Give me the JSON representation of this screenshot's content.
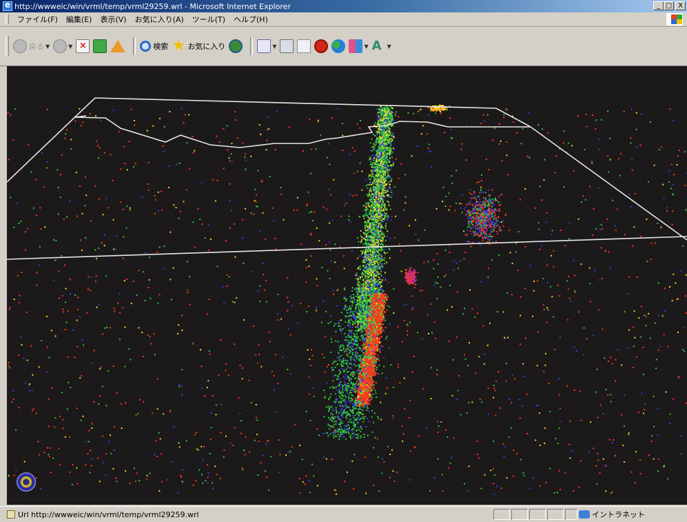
{
  "window": {
    "title": "http://wwweic/win/vrml/temp/vrml29259.wrl - Microsoft Internet Explorer",
    "minimize": "_",
    "maximize": "□",
    "close": "X"
  },
  "menu": {
    "items": [
      "ファイル(F)",
      "編集(E)",
      "表示(V)",
      "お気に入り(A)",
      "ツール(T)",
      "ヘルプ(H)"
    ]
  },
  "toolbar": {
    "back_label": "戻る",
    "search_label": "検索",
    "favorites_label": "お気に入り",
    "icons": [
      "back-icon",
      "forward-icon",
      "stop-icon",
      "refresh-icon",
      "home-icon",
      "search-icon",
      "favorites-icon",
      "history-icon",
      "mail-icon",
      "print-icon",
      "edit-icon",
      "discuss-icon",
      "messenger-icon",
      "translate-icon",
      "highlight-icon"
    ]
  },
  "viewer": {
    "background": "#1b1919",
    "wireframe_color": "#e8e8e8",
    "point_colors": [
      "#ff3a1e",
      "#2ecc40",
      "#e8e030",
      "#3c3ce0",
      "#c02a90"
    ]
  },
  "status": {
    "text": "Url http://wwweic/win/vrml/temp/vrml29259.wrl",
    "zone": "イントラネット"
  }
}
